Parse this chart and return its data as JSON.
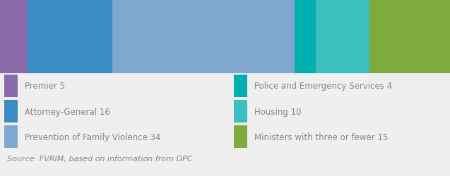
{
  "categories": [
    "Premier",
    "Attorney-General",
    "Prevention of Family Violence",
    "Police and Emergency Services",
    "Housing",
    "Ministers with three or fewer"
  ],
  "values": [
    5,
    16,
    34,
    4,
    10,
    15
  ],
  "colors": [
    "#8b6bab",
    "#3d8dc4",
    "#7fa8d1",
    "#00afaf",
    "#3dbfbf",
    "#7faa3d"
  ],
  "legend_labels": [
    "Premier 5",
    "Attorney-General 16",
    "Prevention of Family Violence 34",
    "Police and Emergency Services 4",
    "Housing 10",
    "Ministers with three or fewer 15"
  ],
  "source_text": "Source: FVRIM, based on information from DPC",
  "background_color": "#efefef",
  "legend_fontsize": 8.5,
  "source_fontsize": 8.0
}
